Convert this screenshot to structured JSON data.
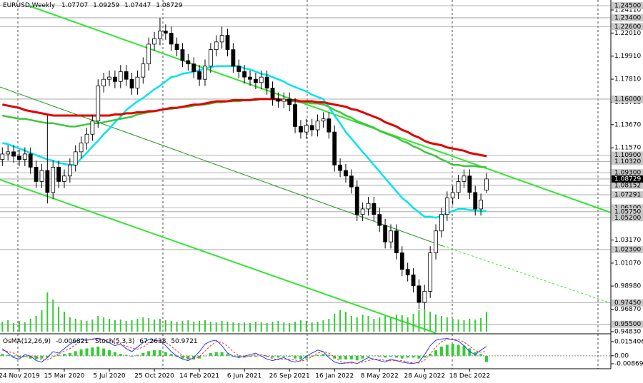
{
  "chart_data": {
    "type": "candlestick",
    "title": "EURUSD,Weekly",
    "categories": [
      null,
      null,
      null,
      "24 Nov 2019",
      null,
      null,
      null,
      null,
      null,
      null,
      null,
      "15 Mar 2020",
      null,
      null,
      null,
      null,
      null,
      null,
      null,
      "5 Jul 2020",
      null,
      null,
      null,
      null,
      null,
      null,
      null,
      "25 Oct 2020",
      null,
      null,
      null,
      null,
      null,
      null,
      null,
      "14 Feb 2021",
      null,
      null,
      null,
      null,
      null,
      null,
      null,
      "6 Jun 2021",
      null,
      null,
      null,
      null,
      null,
      null,
      null,
      "26 Sep 2021",
      null,
      null,
      null,
      null,
      null,
      null,
      null,
      "16 Jan 2022",
      null,
      null,
      null,
      null,
      null,
      null,
      null,
      "8 May 2022",
      null,
      null,
      null,
      null,
      null,
      null,
      null,
      "28 Aug 2022",
      null,
      null,
      null,
      null,
      null,
      null,
      null,
      "18 Dec 2022",
      null,
      null,
      null
    ],
    "open": [
      1.105,
      1.11,
      1.112,
      1.108,
      1.105,
      1.11,
      1.098,
      1.085,
      1.095,
      1.075,
      1.098,
      1.085,
      1.09,
      1.1,
      1.112,
      1.12,
      1.128,
      1.14,
      1.172,
      1.178,
      1.18,
      1.176,
      1.185,
      1.178,
      1.17,
      1.18,
      1.192,
      1.21,
      1.215,
      1.222,
      1.22,
      1.21,
      1.205,
      1.195,
      1.192,
      1.185,
      1.178,
      1.19,
      1.205,
      1.212,
      1.218,
      1.205,
      1.19,
      1.185,
      1.18,
      1.178,
      1.175,
      1.18,
      1.17,
      1.16,
      1.158,
      1.16,
      1.155,
      1.135,
      1.13,
      1.136,
      1.132,
      1.14,
      1.142,
      1.13,
      1.1,
      1.095,
      1.09,
      1.08,
      1.055,
      1.06,
      1.065,
      1.055,
      1.045,
      1.03,
      1.04,
      1.02,
      1.005,
      1.0,
      0.99,
      0.975,
      0.985,
      1.02,
      1.04,
      1.055,
      1.07,
      1.075,
      1.085,
      1.09,
      1.075,
      1.06,
      1.07707
    ],
    "high": [
      1.116,
      1.118,
      1.118,
      1.114,
      1.116,
      1.116,
      1.104,
      1.101,
      1.145,
      1.104,
      1.104,
      1.096,
      1.106,
      1.118,
      1.126,
      1.134,
      1.146,
      1.178,
      1.184,
      1.186,
      1.186,
      1.191,
      1.191,
      1.184,
      1.186,
      1.198,
      1.216,
      1.221,
      1.234,
      1.228,
      1.226,
      1.216,
      1.211,
      1.201,
      1.198,
      1.191,
      1.196,
      1.211,
      1.218,
      1.226,
      1.224,
      1.211,
      1.196,
      1.191,
      1.186,
      1.184,
      1.186,
      1.186,
      1.176,
      1.166,
      1.166,
      1.166,
      1.161,
      1.141,
      1.142,
      1.142,
      1.146,
      1.148,
      1.148,
      1.136,
      1.106,
      1.101,
      1.096,
      1.086,
      1.066,
      1.071,
      1.071,
      1.061,
      1.051,
      1.046,
      1.046,
      1.026,
      1.011,
      1.006,
      0.996,
      0.991,
      1.026,
      1.046,
      1.061,
      1.076,
      1.081,
      1.091,
      1.096,
      1.096,
      1.081,
      1.074,
      1.09259
    ],
    "low": [
      1.099,
      1.104,
      1.102,
      1.099,
      1.099,
      1.092,
      1.079,
      1.079,
      1.065,
      1.069,
      1.079,
      1.079,
      1.084,
      1.094,
      1.106,
      1.114,
      1.122,
      1.134,
      1.166,
      1.172,
      1.17,
      1.17,
      1.172,
      1.164,
      1.164,
      1.174,
      1.186,
      1.204,
      1.209,
      1.214,
      1.204,
      1.199,
      1.189,
      1.186,
      1.179,
      1.172,
      1.172,
      1.184,
      1.199,
      1.206,
      1.199,
      1.184,
      1.179,
      1.174,
      1.172,
      1.169,
      1.169,
      1.164,
      1.154,
      1.152,
      1.152,
      1.149,
      1.129,
      1.124,
      1.124,
      1.126,
      1.126,
      1.134,
      1.124,
      1.094,
      1.089,
      1.084,
      1.074,
      1.049,
      1.049,
      1.054,
      1.049,
      1.039,
      1.024,
      1.024,
      1.014,
      0.999,
      0.994,
      0.984,
      0.969,
      0.969,
      0.979,
      1.014,
      1.034,
      1.049,
      1.064,
      1.069,
      1.079,
      1.069,
      1.054,
      1.054,
      1.07447
    ],
    "close": [
      1.11,
      1.112,
      1.108,
      1.105,
      1.11,
      1.098,
      1.085,
      1.095,
      1.075,
      1.098,
      1.085,
      1.09,
      1.1,
      1.112,
      1.12,
      1.128,
      1.14,
      1.172,
      1.178,
      1.18,
      1.176,
      1.185,
      1.178,
      1.17,
      1.18,
      1.192,
      1.21,
      1.215,
      1.222,
      1.22,
      1.21,
      1.205,
      1.195,
      1.192,
      1.185,
      1.178,
      1.19,
      1.205,
      1.212,
      1.218,
      1.205,
      1.19,
      1.185,
      1.18,
      1.178,
      1.175,
      1.18,
      1.17,
      1.16,
      1.158,
      1.16,
      1.155,
      1.135,
      1.13,
      1.136,
      1.132,
      1.14,
      1.142,
      1.13,
      1.1,
      1.095,
      1.09,
      1.08,
      1.055,
      1.06,
      1.065,
      1.055,
      1.045,
      1.03,
      1.04,
      1.02,
      1.005,
      1.0,
      0.99,
      0.975,
      0.985,
      1.02,
      1.04,
      1.055,
      1.07,
      1.075,
      1.085,
      1.09,
      1.075,
      1.06,
      1.068,
      1.08729
    ],
    "ylim": [
      0.9483,
      1.245
    ],
    "yticks": [
      {
        "value": 1.2411,
        "label": "1.24110"
      },
      {
        "value": 1.2201,
        "label": "1.22010"
      },
      {
        "value": 1.1991,
        "label": "1.19910"
      },
      {
        "value": 1.1781,
        "label": "1.17810"
      },
      {
        "value": 1.1571,
        "label": "1.15710"
      },
      {
        "value": 1.1367,
        "label": "1.13670"
      },
      {
        "value": 1.1157,
        "label": "1.11570"
      },
      {
        "value": 1.0317,
        "label": "1.03170"
      },
      {
        "value": 1.0107,
        "label": "1.01070"
      },
      {
        "value": 0.9898,
        "label": "0.98980"
      },
      {
        "value": 0.9687,
        "label": "0.96870"
      },
      {
        "value": 0.9483,
        "label": "0.94830"
      }
    ],
    "levels": [
      {
        "value": 1.245,
        "label": "1.24500"
      },
      {
        "value": 1.234,
        "label": "1.23400"
      },
      {
        "value": 1.226,
        "label": "1.22600"
      },
      {
        "value": 1.16,
        "label": "1.16000"
      },
      {
        "value": 1.109,
        "label": "1.10900"
      },
      {
        "value": 1.1032,
        "label": "1.10320"
      },
      {
        "value": 1.093,
        "label": "1.09300"
      },
      {
        "value": 1.08152,
        "label": "1.08152"
      },
      {
        "value": 1.07291,
        "label": "1.07291"
      },
      {
        "value": 1.061,
        "label": "1.06100"
      },
      {
        "value": 1.0575,
        "label": "1.05750"
      },
      {
        "value": 1.052,
        "label": "1.05200"
      },
      {
        "value": 1.023,
        "label": "1.02300"
      },
      {
        "value": 0.9745,
        "label": "0.97450"
      },
      {
        "value": 0.955,
        "label": "0.95500"
      }
    ],
    "moving_averages": [
      {
        "color": "#00e5ee",
        "values": [
          1.12,
          1.119,
          1.117,
          1.115,
          1.113,
          1.111,
          1.109,
          1.107,
          1.105,
          1.104,
          1.102,
          1.101,
          1.1,
          1.1,
          1.106,
          1.111,
          1.117,
          1.122,
          1.128,
          1.133,
          1.139,
          1.144,
          1.15,
          1.154,
          1.158,
          1.161,
          1.165,
          1.169,
          1.172,
          1.176,
          1.18,
          1.181,
          1.183,
          1.184,
          1.185,
          1.186,
          1.188,
          1.189,
          1.19,
          1.19,
          1.19,
          1.19,
          1.19,
          1.188,
          1.187,
          1.185,
          1.183,
          1.182,
          1.18,
          1.178,
          1.176,
          1.173,
          1.171,
          1.169,
          1.167,
          1.164,
          1.162,
          1.16,
          1.153,
          1.145,
          1.138,
          1.13,
          1.124,
          1.118,
          1.112,
          1.106,
          1.1,
          1.094,
          1.088,
          1.082,
          1.076,
          1.07,
          1.066,
          1.061,
          1.057,
          1.053,
          1.053,
          1.052,
          1.054,
          1.056,
          1.058,
          1.06,
          1.06,
          1.059,
          1.059,
          1.058,
          1.058
        ]
      },
      {
        "color": "#3cc83c",
        "values": [
          1.145,
          1.144,
          1.143,
          1.142,
          1.142,
          1.141,
          1.14,
          1.139,
          1.138,
          1.138,
          1.137,
          1.136,
          1.135,
          1.135,
          1.136,
          1.137,
          1.138,
          1.138,
          1.139,
          1.14,
          1.141,
          1.142,
          1.143,
          1.144,
          1.146,
          1.147,
          1.148,
          1.149,
          1.15,
          1.151,
          1.151,
          1.152,
          1.153,
          1.153,
          1.154,
          1.155,
          1.155,
          1.156,
          1.157,
          1.157,
          1.158,
          1.158,
          1.158,
          1.159,
          1.159,
          1.159,
          1.16,
          1.16,
          1.16,
          1.159,
          1.159,
          1.158,
          1.158,
          1.157,
          1.157,
          1.156,
          1.156,
          1.155,
          1.153,
          1.15,
          1.148,
          1.145,
          1.143,
          1.14,
          1.138,
          1.136,
          1.134,
          1.131,
          1.129,
          1.127,
          1.125,
          1.122,
          1.12,
          1.117,
          1.115,
          1.112,
          1.11,
          1.108,
          1.105,
          1.103,
          1.1,
          1.1,
          1.099,
          1.099,
          1.099,
          1.098,
          1.098
        ]
      },
      {
        "color": "#e00000",
        "values": [
          1.155,
          1.154,
          1.153,
          1.152,
          1.15,
          1.149,
          1.148,
          1.147,
          1.146,
          1.145,
          1.145,
          1.145,
          1.145,
          1.145,
          1.145,
          1.145,
          1.145,
          1.145,
          1.145,
          1.145,
          1.146,
          1.146,
          1.147,
          1.147,
          1.148,
          1.148,
          1.149,
          1.149,
          1.15,
          1.151,
          1.152,
          1.152,
          1.153,
          1.154,
          1.155,
          1.155,
          1.156,
          1.157,
          1.158,
          1.158,
          1.158,
          1.159,
          1.159,
          1.159,
          1.159,
          1.16,
          1.16,
          1.16,
          1.16,
          1.16,
          1.159,
          1.159,
          1.159,
          1.158,
          1.158,
          1.158,
          1.157,
          1.157,
          1.156,
          1.155,
          1.154,
          1.153,
          1.151,
          1.15,
          1.148,
          1.146,
          1.144,
          1.142,
          1.139,
          1.137,
          1.135,
          1.132,
          1.13,
          1.127,
          1.125,
          1.122,
          1.12,
          1.119,
          1.118,
          1.116,
          1.115,
          1.114,
          1.113,
          1.111,
          1.11,
          1.109,
          1.108
        ]
      }
    ],
    "volume": [
      14,
      16,
      12,
      15,
      13,
      18,
      22,
      30,
      55,
      45,
      35,
      28,
      20,
      18,
      16,
      15,
      17,
      22,
      20,
      18,
      16,
      17,
      15,
      16,
      18,
      20,
      19,
      17,
      18,
      16,
      15,
      14,
      15,
      16,
      14,
      15,
      16,
      14,
      13,
      15,
      14,
      13,
      12,
      13,
      12,
      14,
      13,
      12,
      14,
      15,
      13,
      12,
      14,
      16,
      15,
      13,
      14,
      16,
      18,
      25,
      30,
      28,
      22,
      20,
      24,
      22,
      18,
      20,
      22,
      21,
      24,
      23,
      20,
      25,
      30,
      32,
      28,
      24,
      22,
      20,
      18,
      17,
      16,
      18,
      17,
      19,
      28
    ],
    "volume_color": "#32cd32",
    "oscillator": {
      "name": "OsMA(12,26,9)",
      "color": "#32cd32",
      "values": [
        0.002,
        0.001,
        -0.001,
        -0.002,
        -0.001,
        -0.003,
        -0.004,
        -0.003,
        -0.002,
        0.0,
        0.001,
        0.002,
        0.003,
        0.005,
        0.007,
        0.008,
        0.009,
        0.01,
        0.008,
        0.006,
        0.004,
        0.002,
        0.001,
        -0.001,
        0.001,
        0.003,
        0.005,
        0.006,
        0.006,
        0.004,
        0.002,
        -0.001,
        -0.003,
        -0.004,
        -0.004,
        -0.003,
        0.0,
        0.003,
        0.004,
        0.004,
        0.002,
        -0.001,
        -0.002,
        -0.002,
        -0.001,
        -0.001,
        0.0,
        -0.001,
        -0.002,
        -0.002,
        -0.001,
        -0.001,
        -0.003,
        -0.004,
        -0.003,
        -0.001,
        0.001,
        0.002,
        0.001,
        -0.003,
        -0.004,
        -0.004,
        -0.004,
        -0.005,
        -0.003,
        -0.001,
        0.0,
        -0.001,
        -0.002,
        -0.001,
        -0.002,
        -0.003,
        -0.002,
        -0.002,
        -0.003,
        -0.002,
        0.002,
        0.006,
        0.01,
        0.012,
        0.013,
        0.012,
        0.011,
        0.008,
        0.004,
        0.002,
        -0.006821
      ],
      "ylim": [
        -0.0086921,
        0.0154064
      ],
      "yticks": [
        {
          "value": 0.0154064,
          "label": "0.0154064"
        },
        {
          "value": 0,
          "label": "0.00"
        },
        {
          "value": -0.0086921,
          "label": "-0.0086921"
        }
      ]
    },
    "stochastic": {
      "name": "Stoch(5,3,3)",
      "ylim": [
        0,
        100
      ],
      "main_color": "#2040ff",
      "signal_color": "#ff3030",
      "main": [
        60,
        45,
        30,
        25,
        40,
        35,
        20,
        15,
        30,
        50,
        45,
        60,
        75,
        85,
        90,
        88,
        92,
        95,
        90,
        80,
        70,
        75,
        60,
        50,
        65,
        80,
        90,
        88,
        85,
        70,
        50,
        35,
        25,
        20,
        30,
        50,
        75,
        85,
        88,
        70,
        45,
        35,
        30,
        35,
        40,
        45,
        35,
        25,
        20,
        25,
        30,
        20,
        15,
        20,
        35,
        45,
        55,
        50,
        30,
        15,
        10,
        12,
        15,
        10,
        20,
        30,
        25,
        20,
        15,
        25,
        20,
        15,
        12,
        10,
        15,
        40,
        70,
        88,
        92,
        94,
        90,
        85,
        70,
        50,
        40,
        55,
        67.2638
      ],
      "signal": [
        55,
        50,
        45,
        33,
        32,
        33,
        32,
        23,
        22,
        32,
        42,
        52,
        60,
        73,
        83,
        88,
        90,
        92,
        92,
        88,
        80,
        75,
        68,
        62,
        58,
        65,
        78,
        86,
        88,
        81,
        68,
        52,
        37,
        27,
        25,
        33,
        52,
        70,
        83,
        81,
        68,
        50,
        37,
        33,
        35,
        40,
        40,
        35,
        27,
        23,
        25,
        25,
        22,
        18,
        23,
        33,
        45,
        50,
        45,
        32,
        18,
        12,
        12,
        12,
        15,
        20,
        25,
        25,
        20,
        20,
        20,
        20,
        16,
        12,
        12,
        22,
        42,
        66,
        83,
        91,
        92,
        90,
        82,
        68,
        53,
        48,
        50.9721
      ]
    }
  }
}
